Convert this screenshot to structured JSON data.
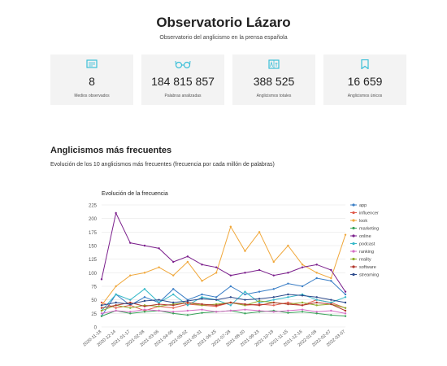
{
  "header": {
    "title": "Observatorio Lázaro",
    "subtitle": "Observatorio del anglicismo en la prensa española"
  },
  "stats": [
    {
      "icon": "newspaper-icon",
      "value": "8",
      "label": "Medios observados"
    },
    {
      "icon": "glasses-icon",
      "value": "184 815 857",
      "label": "Palabras analizadas"
    },
    {
      "icon": "translate-icon",
      "value": "388 525",
      "label": "Anglicismos totales"
    },
    {
      "icon": "bookmark-icon",
      "value": "16 659",
      "label": "Anglicismos únicos"
    }
  ],
  "section": {
    "title": "Anglicismos más frecuentes",
    "description": "Evolución de los 10 anglicismos más frecuentes (frecuencia por cada millón de palabras)"
  },
  "colors": {
    "accent": "#3bbfd8",
    "card_bg": "#f3f3f3"
  },
  "chart_data": {
    "type": "line",
    "title": "Evolución de la frecuencia",
    "xlabel": "",
    "ylabel": "",
    "ylim": [
      0,
      225
    ],
    "yticks": [
      0,
      25,
      50,
      75,
      100,
      125,
      150,
      175,
      200,
      225
    ],
    "grid": true,
    "legend": "right",
    "x": [
      "2020-11-18",
      "2020-12-14",
      "2021-01-17",
      "2021-02-08",
      "2021-03-06",
      "2021-04-08",
      "2021-05-02",
      "2021-05-31",
      "2021-06-25",
      "2021-07-28",
      "2021-08-20",
      "2021-09-23",
      "2021-10-19",
      "2021-11-15",
      "2021-12-16",
      "2022-01-08",
      "2022-02-07",
      "2022-03-07"
    ],
    "series": [
      {
        "name": "app",
        "color": "#3a7ec6",
        "values": [
          20,
          60,
          40,
          55,
          45,
          70,
          50,
          60,
          55,
          75,
          60,
          65,
          70,
          80,
          75,
          90,
          85,
          60
        ]
      },
      {
        "name": "influencer",
        "color": "#e05a4b",
        "values": [
          45,
          35,
          40,
          30,
          38,
          35,
          42,
          40,
          38,
          45,
          40,
          42,
          40,
          45,
          40,
          50,
          45,
          35
        ]
      },
      {
        "name": "look",
        "color": "#f0a73a",
        "values": [
          40,
          75,
          95,
          100,
          110,
          95,
          120,
          85,
          100,
          185,
          140,
          175,
          120,
          150,
          115,
          100,
          90,
          170
        ]
      },
      {
        "name": "marketing",
        "color": "#3aa35a",
        "values": [
          20,
          30,
          25,
          28,
          30,
          25,
          22,
          26,
          28,
          30,
          25,
          28,
          30,
          26,
          28,
          25,
          22,
          20
        ]
      },
      {
        "name": "online",
        "color": "#7b1f8c",
        "values": [
          88,
          210,
          155,
          150,
          145,
          120,
          130,
          115,
          110,
          95,
          100,
          105,
          95,
          100,
          110,
          115,
          105,
          65
        ]
      },
      {
        "name": "podcast",
        "color": "#35b8c8",
        "values": [
          30,
          60,
          50,
          70,
          45,
          60,
          40,
          55,
          50,
          40,
          65,
          45,
          50,
          55,
          60,
          50,
          45,
          55
        ]
      },
      {
        "name": "ranking",
        "color": "#d56cc4",
        "values": [
          25,
          30,
          28,
          32,
          30,
          28,
          30,
          32,
          28,
          30,
          32,
          30,
          28,
          30,
          32,
          28,
          30,
          25
        ]
      },
      {
        "name": "reality",
        "color": "#8fae2c",
        "values": [
          30,
          40,
          35,
          40,
          38,
          42,
          45,
          40,
          42,
          45,
          40,
          48,
          45,
          42,
          45,
          40,
          42,
          35
        ]
      },
      {
        "name": "software",
        "color": "#b2362b",
        "values": [
          35,
          40,
          45,
          38,
          42,
          40,
          45,
          42,
          40,
          45,
          42,
          40,
          45,
          42,
          40,
          45,
          42,
          30
        ]
      },
      {
        "name": "streaming",
        "color": "#2d4a8c",
        "values": [
          40,
          45,
          42,
          48,
          50,
          45,
          48,
          52,
          50,
          55,
          50,
          52,
          55,
          60,
          58,
          55,
          50,
          45
        ]
      }
    ]
  }
}
